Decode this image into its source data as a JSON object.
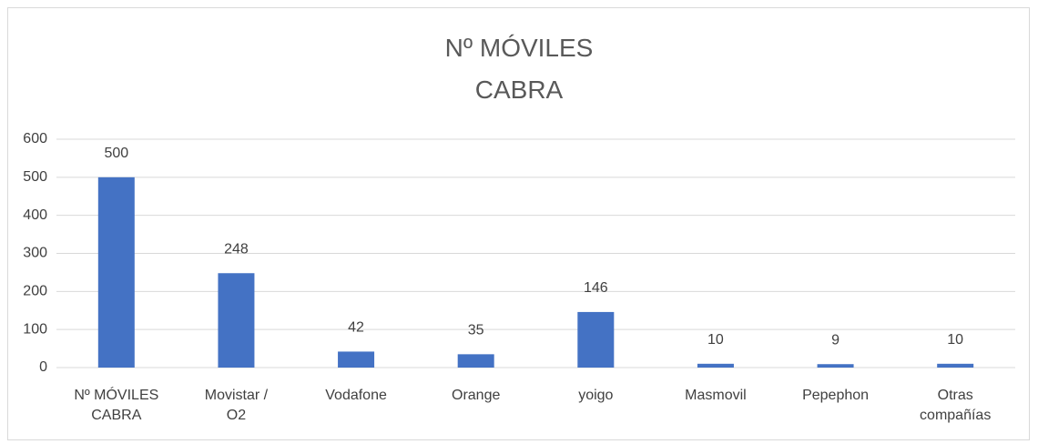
{
  "chart_data": {
    "type": "bar",
    "title": "Nº MÓVILES\nCABRA",
    "categories": [
      "Nº MÓVILES\nCABRA",
      "Movistar /\nO2",
      "Vodafone",
      "Orange",
      "yoigo",
      "Masmovil",
      "Pepephon",
      "Otras\ncompañías"
    ],
    "values": [
      500,
      248,
      42,
      35,
      146,
      10,
      9,
      10
    ],
    "color": "#4472c4",
    "ylim": [
      0,
      600
    ],
    "yticks": [
      0,
      100,
      200,
      300,
      400,
      500,
      600
    ],
    "grid": true
  }
}
